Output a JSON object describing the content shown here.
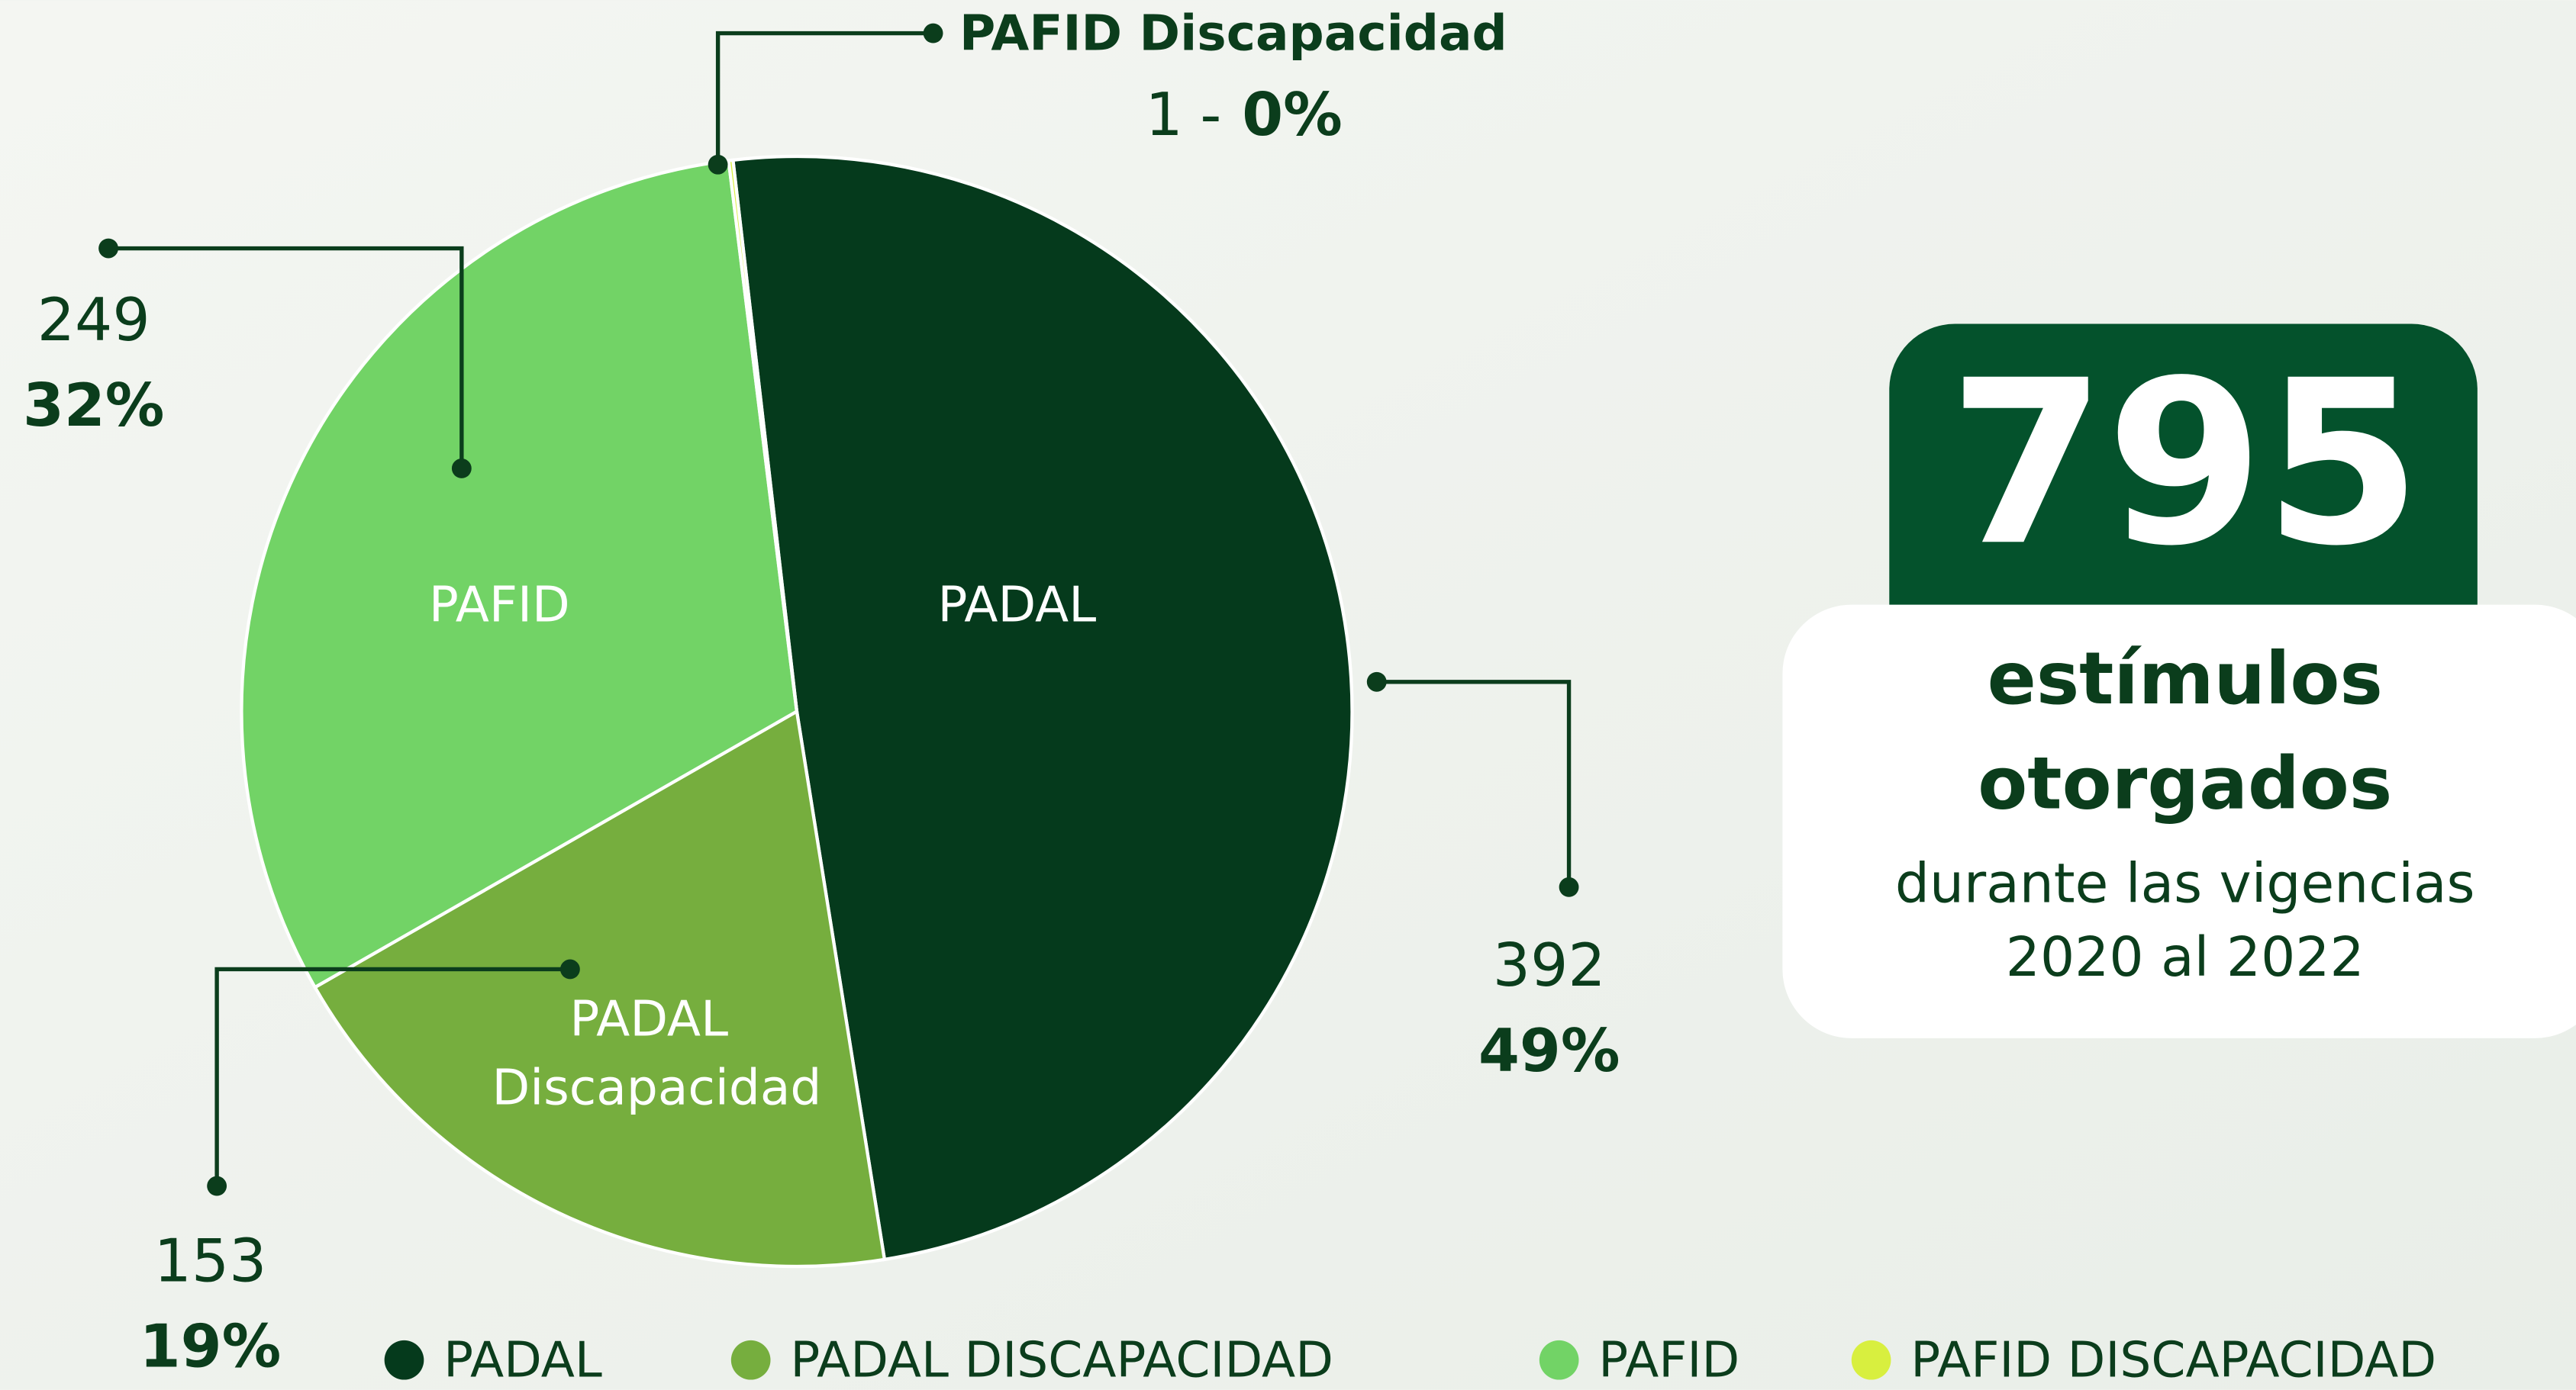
{
  "chart_data": {
    "type": "pie",
    "series": [
      {
        "name": "PADAL",
        "color": "#053a1c",
        "value": 392,
        "percent_label": "49%"
      },
      {
        "name": "PADAL Discapacidad",
        "color": "#76ae3e",
        "value": 153,
        "percent_label": "19%"
      },
      {
        "name": "PAFID",
        "color": "#72d366",
        "value": 249,
        "percent_label": "32%"
      },
      {
        "name": "PAFID Discapacidad",
        "color": "#d8ef3f",
        "value": 1,
        "percent_label": "0%"
      }
    ],
    "value_separator": "-",
    "summary": {
      "total": 795,
      "heading": [
        "estímulos",
        "otorgados"
      ],
      "subtitle": [
        "durante las vigencias",
        "2020 al 2022"
      ]
    }
  }
}
